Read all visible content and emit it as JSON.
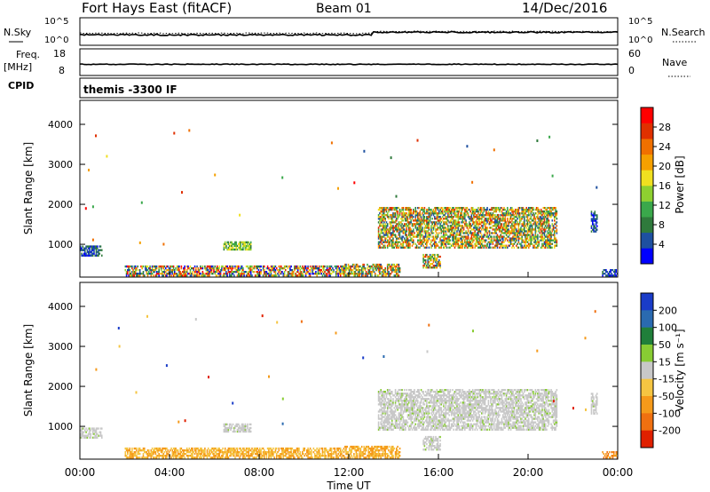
{
  "header": {
    "title": "Fort Hays East (fitACF)",
    "beam": "Beam 01",
    "date": "14/Dec/2016"
  },
  "params": {
    "nsky_label": "N.Sky",
    "nsearch_label": "N.Search",
    "freq_label": "Freq.",
    "freq_unit": "[MHz]",
    "nave_label": "Nave",
    "cpid_label": "CPID",
    "cpid_value": "themis -3300 IF",
    "noise_ticks_left": [
      "10^5",
      "10^0"
    ],
    "noise_ticks_right": [
      "10^5",
      "10^0"
    ],
    "freq_ticks": [
      "18",
      "8"
    ],
    "nave_ticks": [
      "60",
      "0"
    ]
  },
  "colors": {
    "power": [
      "#0000ff",
      "#1e50a0",
      "#2f7a3c",
      "#3aa84b",
      "#8ed030",
      "#f0e020",
      "#f5a000",
      "#f07000",
      "#e03000",
      "#ff0000"
    ],
    "velocity": [
      "#1a3cc8",
      "#2a6ab0",
      "#207f3a",
      "#88cc33",
      "#c8c8c8",
      "#f5c542",
      "#f59a1a",
      "#f07010",
      "#e02000"
    ]
  },
  "chart_data": [
    {
      "type": "heatmap",
      "name": "power",
      "xlabel": "",
      "ylabel": "Slant Range [km]",
      "xlim": [
        0,
        24
      ],
      "ylim": [
        180,
        4600
      ],
      "yticks": [
        1000,
        2000,
        3000,
        4000
      ],
      "colorbar": {
        "label": "Power [dB]",
        "ticks": [
          4,
          8,
          12,
          16,
          20,
          24,
          28
        ],
        "range": [
          0,
          32
        ]
      },
      "regions": [
        {
          "t": [
            0.0,
            1.0
          ],
          "r": [
            700,
            950
          ],
          "level": "low"
        },
        {
          "t": [
            2.0,
            11.8
          ],
          "r": [
            200,
            450
          ],
          "level": "mixed"
        },
        {
          "t": [
            6.4,
            7.6
          ],
          "r": [
            850,
            1050
          ],
          "level": "mid"
        },
        {
          "t": [
            11.8,
            14.3
          ],
          "r": [
            200,
            480
          ],
          "level": "high"
        },
        {
          "t": [
            13.3,
            21.3
          ],
          "r": [
            900,
            1900
          ],
          "level": "high"
        },
        {
          "t": [
            15.3,
            16.1
          ],
          "r": [
            400,
            750
          ],
          "level": "high"
        },
        {
          "t": [
            22.8,
            23.1
          ],
          "r": [
            1300,
            1800
          ],
          "level": "low"
        },
        {
          "t": [
            23.3,
            24.0
          ],
          "r": [
            200,
            350
          ],
          "level": "low"
        }
      ]
    },
    {
      "type": "heatmap",
      "name": "velocity",
      "xlabel": "Time UT",
      "ylabel": "Slant Range [km]",
      "xlim": [
        0,
        24
      ],
      "ylim": [
        180,
        4600
      ],
      "yticks": [
        1000,
        2000,
        3000,
        4000
      ],
      "xticks": [
        "00:00",
        "04:00",
        "08:00",
        "12:00",
        "16:00",
        "20:00",
        "00:00"
      ],
      "colorbar": {
        "label": "Velocity [m s⁻¹]",
        "ticks": [
          200,
          100,
          50,
          15,
          -15,
          -50,
          -100,
          -200
        ]
      },
      "regions": [
        {
          "t": [
            0.0,
            1.0
          ],
          "r": [
            700,
            950
          ],
          "level": "ground"
        },
        {
          "t": [
            2.0,
            11.8
          ],
          "r": [
            200,
            450
          ],
          "level": "neg"
        },
        {
          "t": [
            6.4,
            7.6
          ],
          "r": [
            850,
            1050
          ],
          "level": "ground"
        },
        {
          "t": [
            11.8,
            14.3
          ],
          "r": [
            200,
            480
          ],
          "level": "neg"
        },
        {
          "t": [
            13.3,
            21.3
          ],
          "r": [
            900,
            1900
          ],
          "level": "ground"
        },
        {
          "t": [
            15.3,
            16.1
          ],
          "r": [
            400,
            750
          ],
          "level": "ground"
        },
        {
          "t": [
            22.8,
            23.1
          ],
          "r": [
            1300,
            1800
          ],
          "level": "ground"
        },
        {
          "t": [
            23.3,
            24.0
          ],
          "r": [
            200,
            350
          ],
          "level": "negstrong"
        }
      ]
    }
  ]
}
